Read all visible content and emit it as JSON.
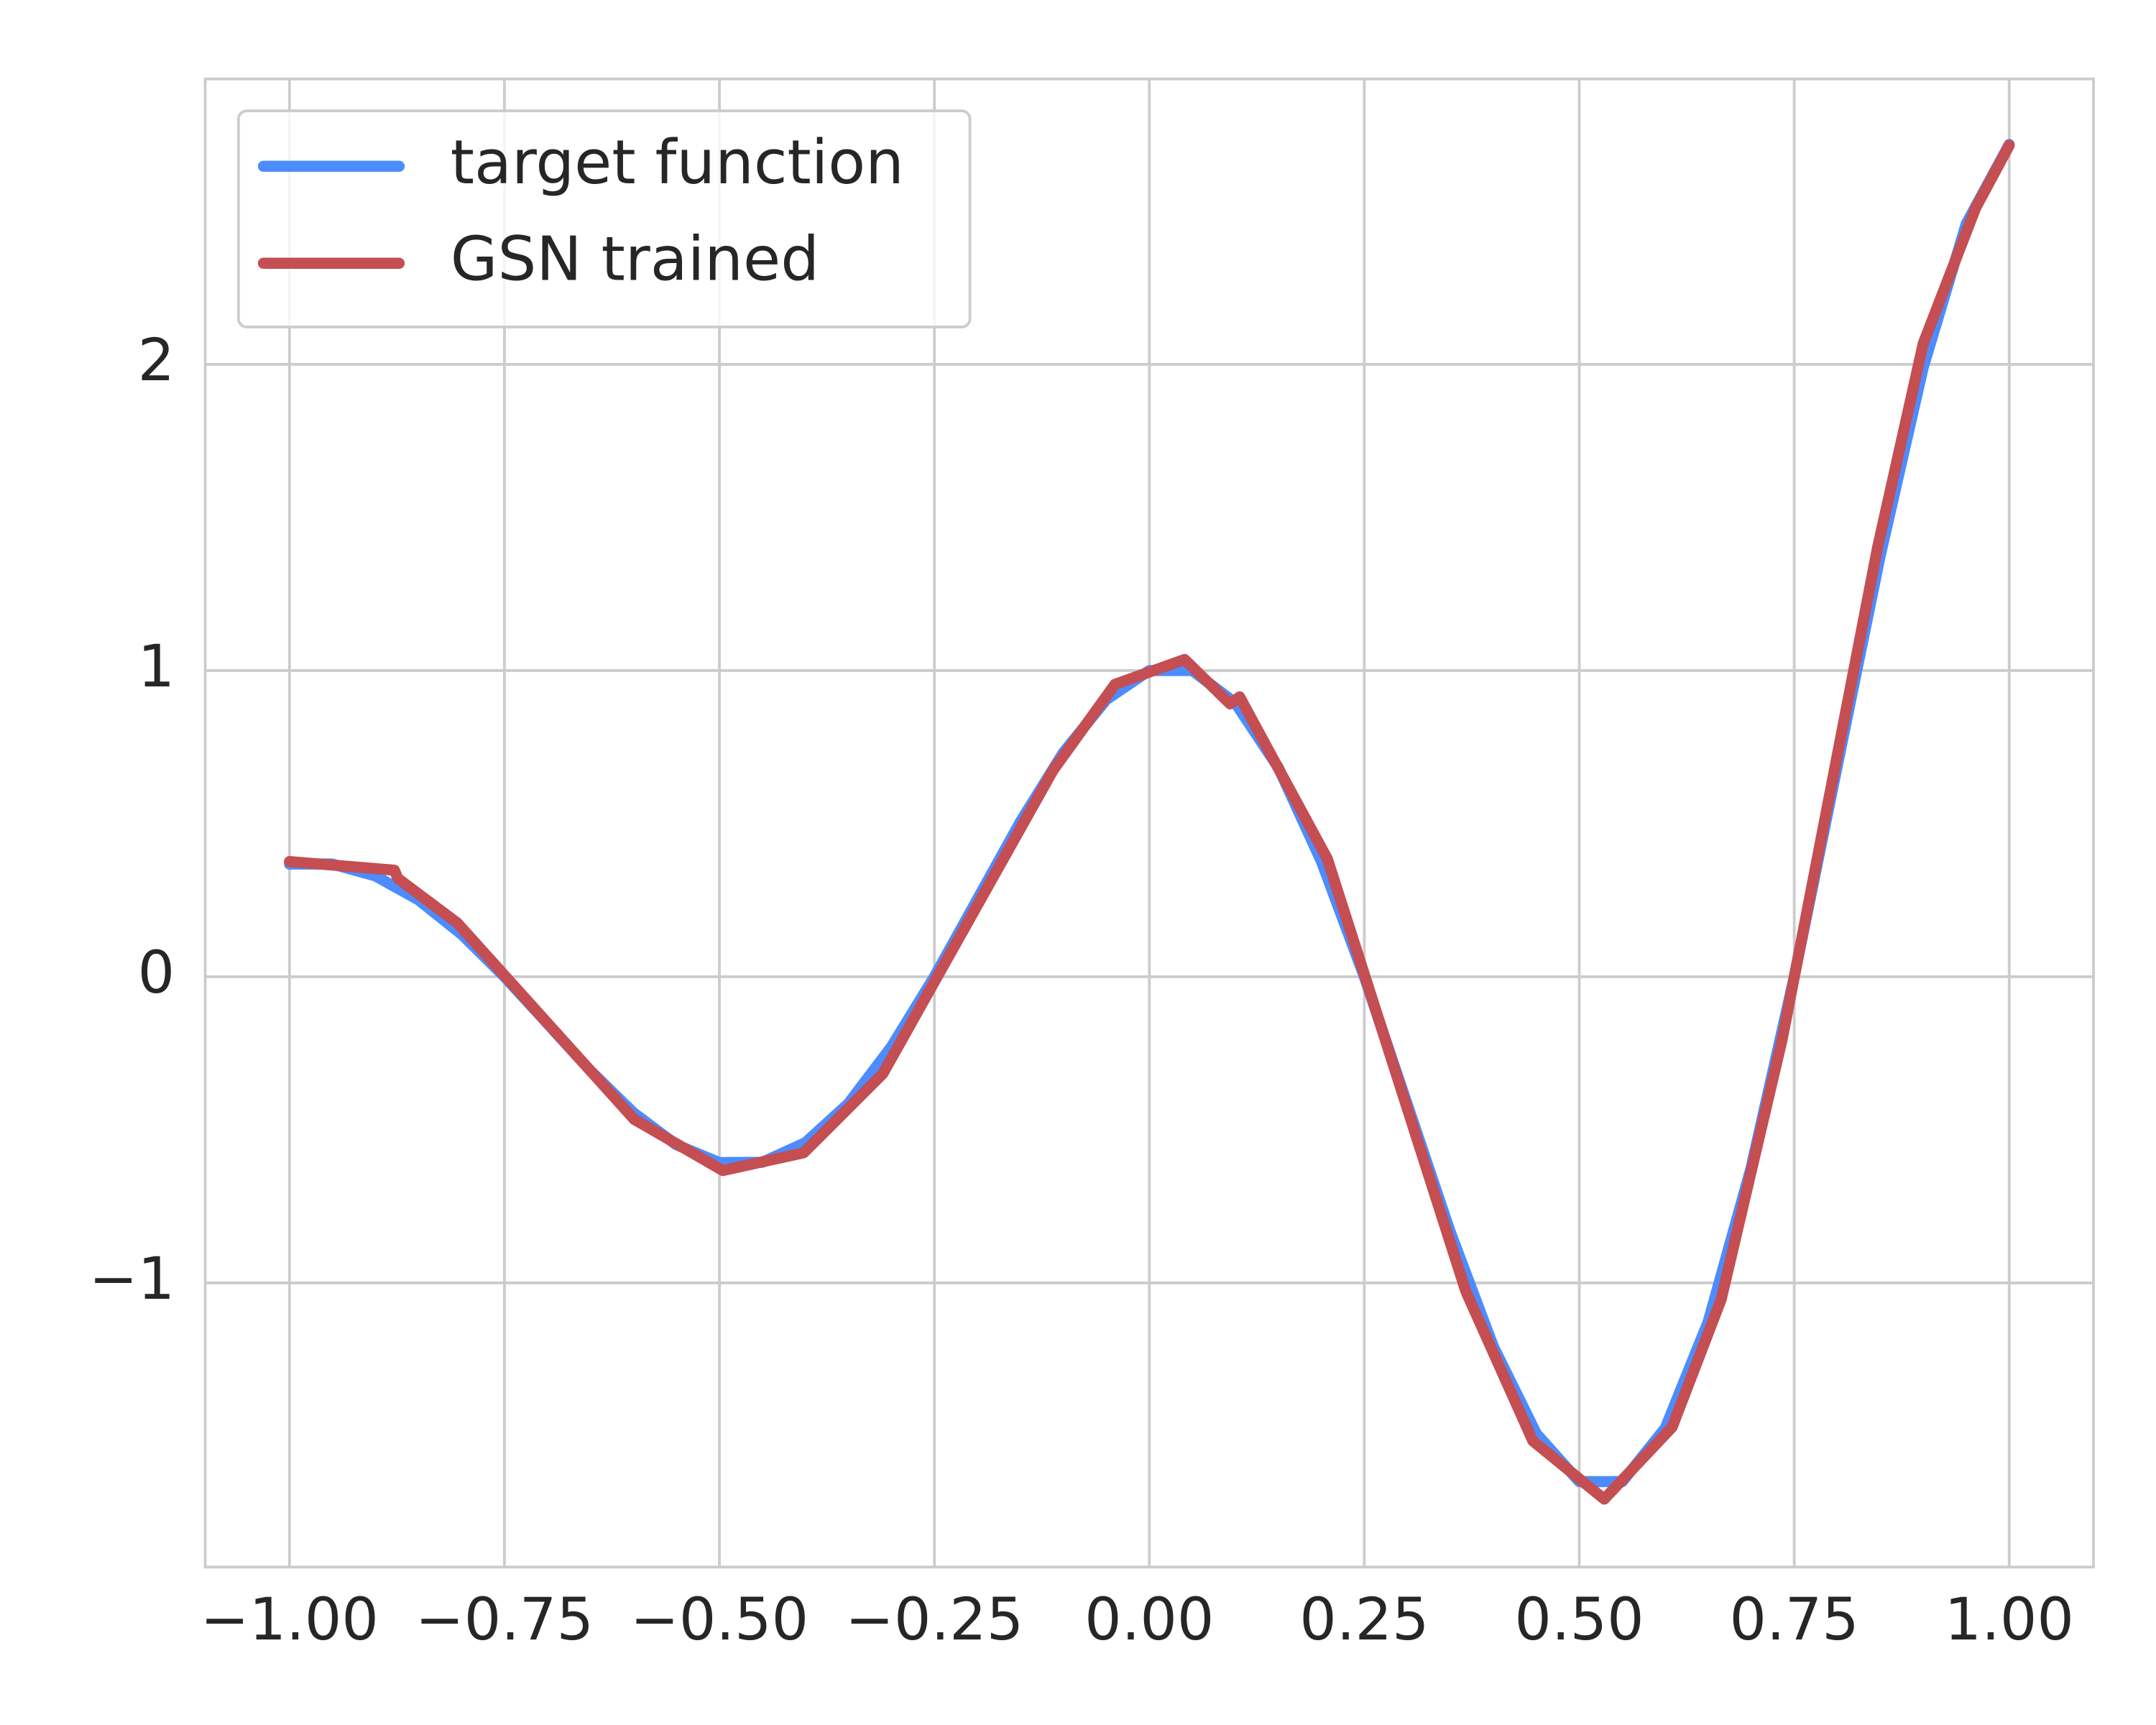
{
  "chart_data": {
    "type": "line",
    "xlim": [
      -1.098,
      1.098
    ],
    "ylim": [
      -1.928,
      2.932
    ],
    "xticks": [
      {
        "value": -1,
        "label": "−1.00"
      },
      {
        "value": -0.75,
        "label": "−0.75"
      },
      {
        "value": -0.5,
        "label": "−0.50"
      },
      {
        "value": -0.25,
        "label": "−0.25"
      },
      {
        "value": 0,
        "label": "0.00"
      },
      {
        "value": 0.25,
        "label": "0.25"
      },
      {
        "value": 0.5,
        "label": "0.50"
      },
      {
        "value": 0.75,
        "label": "0.75"
      },
      {
        "value": 1,
        "label": "1.00"
      }
    ],
    "yticks": [
      {
        "value": -1,
        "label": "−1"
      },
      0,
      1,
      2
    ],
    "grid": true,
    "legend": "upper left",
    "series": [
      {
        "name": "target function",
        "color": "#4c8cff",
        "x": [
          -1,
          -0.95,
          -0.9,
          -0.85,
          -0.8,
          -0.75,
          -0.7,
          -0.65,
          -0.6,
          -0.55,
          -0.5,
          -0.45,
          -0.4,
          -0.35,
          -0.3,
          -0.25,
          -0.2,
          -0.15,
          -0.1,
          -0.05,
          0,
          0.05,
          0.1,
          0.15,
          0.2,
          0.25,
          0.3,
          0.35,
          0.4,
          0.45,
          0.5,
          0.55,
          0.6,
          0.65,
          0.7,
          0.75,
          0.8,
          0.85,
          0.9,
          0.95,
          1
        ],
        "values": [
          0.368,
          0.368,
          0.329,
          0.251,
          0.139,
          0,
          -0.153,
          -0.307,
          -0.444,
          -0.549,
          -0.607,
          -0.606,
          -0.542,
          -0.414,
          -0.229,
          0,
          0.253,
          0.506,
          0.732,
          0.905,
          1,
          1.0,
          0.894,
          0.683,
          0.377,
          0,
          -0.417,
          -0.834,
          -1.207,
          -1.492,
          -1.649,
          -1.649,
          -1.474,
          -1.126,
          -0.622,
          0,
          0.688,
          1.375,
          1.99,
          2.459,
          2.718
        ]
      },
      {
        "name": "GSN trained",
        "color": "#c44e52",
        "x": [
          -1,
          -0.878,
          -0.874,
          -0.805,
          -0.599,
          -0.496,
          -0.402,
          -0.31,
          -0.112,
          -0.04,
          0.041,
          0.094,
          0.105,
          0.207,
          0.368,
          0.446,
          0.529,
          0.608,
          0.665,
          0.736,
          0.847,
          0.9,
          0.961,
          1
        ],
        "values": [
          0.376,
          0.348,
          0.321,
          0.176,
          -0.466,
          -0.633,
          -0.575,
          -0.317,
          0.674,
          0.955,
          1.036,
          0.891,
          0.914,
          0.385,
          -1.027,
          -1.516,
          -1.706,
          -1.471,
          -1.054,
          -0.204,
          1.403,
          2.068,
          2.511,
          2.715
        ]
      }
    ]
  }
}
